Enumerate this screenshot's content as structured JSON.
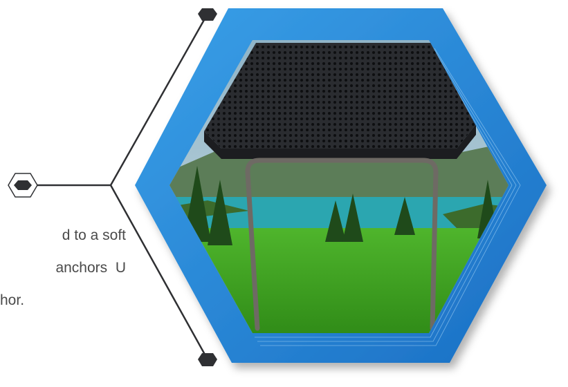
{
  "paragraph": {
    "lines": [
      "d to a soft",
      "anchors  U",
      "hor."
    ]
  }
}
